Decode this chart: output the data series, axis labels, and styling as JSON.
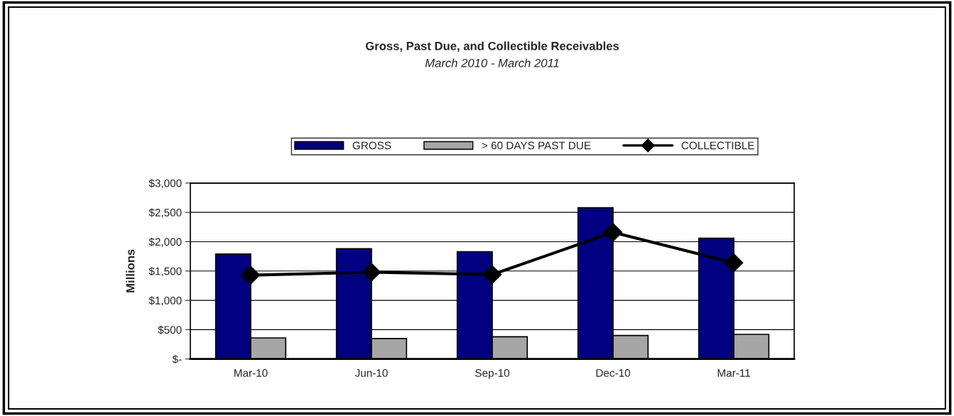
{
  "chart_data": {
    "type": "bar",
    "title": "Gross, Past Due, and Collectible Receivables",
    "subtitle": "March 2010 - March 2011",
    "ylabel": "Millions",
    "categories": [
      "Mar-10",
      "Jun-10",
      "Sep-10",
      "Dec-10",
      "Mar-11"
    ],
    "series": [
      {
        "name": "GROSS",
        "color": "#000080",
        "values": [
          1790,
          1880,
          1830,
          2580,
          2060
        ]
      },
      {
        "name": "> 60 DAYS PAST DUE",
        "color": "#a6a6a6",
        "values": [
          360,
          350,
          380,
          400,
          420
        ]
      },
      {
        "name": "COLLECTIBLE",
        "type": "line",
        "color": "#000000",
        "values": [
          1430,
          1480,
          1440,
          2160,
          1640
        ]
      }
    ],
    "marker": "diamond",
    "ylim": [
      0,
      3000
    ],
    "yticks": [
      {
        "value": 0,
        "label": "$-"
      },
      {
        "value": 500,
        "label": "$500"
      },
      {
        "value": 1000,
        "label": "$1,000"
      },
      {
        "value": 1500,
        "label": "$1,500"
      },
      {
        "value": 2000,
        "label": "$2,000"
      },
      {
        "value": 2500,
        "label": "$2,500"
      },
      {
        "value": 3000,
        "label": "$3,000"
      }
    ],
    "grid": "y",
    "legend": "top"
  }
}
